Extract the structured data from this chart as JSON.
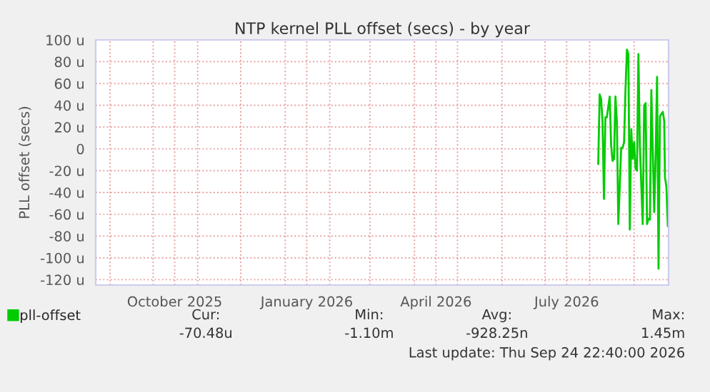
{
  "chart_data": {
    "type": "line",
    "title": "NTP kernel PLL offset (secs) - by year",
    "ylabel": "PLL offset (secs)",
    "x": [
      "2026-08-07",
      "2026-08-08",
      "2026-08-09",
      "2026-08-10",
      "2026-08-11",
      "2026-08-12",
      "2026-08-13",
      "2026-08-15",
      "2026-08-16",
      "2026-08-17",
      "2026-08-18",
      "2026-08-19",
      "2026-08-20",
      "2026-08-21",
      "2026-08-23",
      "2026-08-24",
      "2026-08-25",
      "2026-08-26",
      "2026-08-27",
      "2026-08-28",
      "2026-08-29",
      "2026-08-30",
      "2026-08-31",
      "2026-09-01",
      "2026-09-02",
      "2026-09-03",
      "2026-09-04",
      "2026-09-05",
      "2026-09-07",
      "2026-09-08",
      "2026-09-09",
      "2026-09-10",
      "2026-09-11",
      "2026-09-12",
      "2026-09-13",
      "2026-09-15",
      "2026-09-16",
      "2026-09-17",
      "2026-09-18",
      "2026-09-19",
      "2026-09-21",
      "2026-09-22",
      "2026-09-22T12:00",
      "2026-09-23T12:00",
      "2026-09-24T12:00"
    ],
    "series": [
      {
        "name": "pll-offset",
        "color": "#00cc00",
        "values": [
          -14,
          50,
          46,
          25,
          -46,
          29,
          29,
          48,
          3,
          -11,
          -9,
          48,
          25,
          -69,
          1,
          1,
          6,
          55,
          91,
          87,
          -74,
          18,
          -9,
          6,
          -18,
          -20,
          87,
          3,
          -69,
          40,
          42,
          -69,
          -64,
          -65,
          54,
          -58,
          -5,
          66,
          -110,
          30,
          34,
          25,
          -26,
          -35,
          -71
        ]
      }
    ],
    "xlim": [
      "2025-08-22",
      "2026-09-25"
    ],
    "xticks": [
      {
        "value": "2025-09-01",
        "label": null
      },
      {
        "value": "2025-10-01",
        "label": null
      },
      {
        "value": "2025-10-16",
        "label": "October 2025"
      },
      {
        "value": "2025-11-01",
        "label": null
      },
      {
        "value": "2025-12-01",
        "label": null
      },
      {
        "value": "2026-01-01",
        "label": null
      },
      {
        "value": "2026-01-16",
        "label": "January 2026"
      },
      {
        "value": "2026-02-01",
        "label": null
      },
      {
        "value": "2026-03-01",
        "label": null
      },
      {
        "value": "2026-04-01",
        "label": null
      },
      {
        "value": "2026-04-16",
        "label": "April 2026"
      },
      {
        "value": "2026-05-01",
        "label": null
      },
      {
        "value": "2026-06-01",
        "label": null
      },
      {
        "value": "2026-07-01",
        "label": null
      },
      {
        "value": "2026-07-16",
        "label": "July 2026"
      },
      {
        "value": "2026-08-01",
        "label": null
      },
      {
        "value": "2026-09-01",
        "label": null
      }
    ],
    "ylim": [
      -125,
      100
    ],
    "yticks": [
      {
        "value": 100,
        "label": "100 u"
      },
      {
        "value": 80,
        "label": "80 u"
      },
      {
        "value": 60,
        "label": "60 u"
      },
      {
        "value": 40,
        "label": "40 u"
      },
      {
        "value": 20,
        "label": "20 u"
      },
      0,
      {
        "value": -20,
        "label": "-20 u"
      },
      {
        "value": -40,
        "label": "-40 u"
      },
      {
        "value": -60,
        "label": "-60 u"
      },
      {
        "value": -80,
        "label": "-80 u"
      },
      {
        "value": -100,
        "label": "-100 u"
      },
      {
        "value": -120,
        "label": "-120 u"
      }
    ],
    "grid": true,
    "legend": "bottom left",
    "marker": "none",
    "line_style": "solid",
    "annotations": [
      "Cur:",
      "-70.48u",
      "Min:",
      "-1.10m",
      "Avg:",
      "-928.25n",
      "Max:",
      "1.45m",
      "Last update: Thu Sep 24 22:40:00 2026"
    ]
  }
}
